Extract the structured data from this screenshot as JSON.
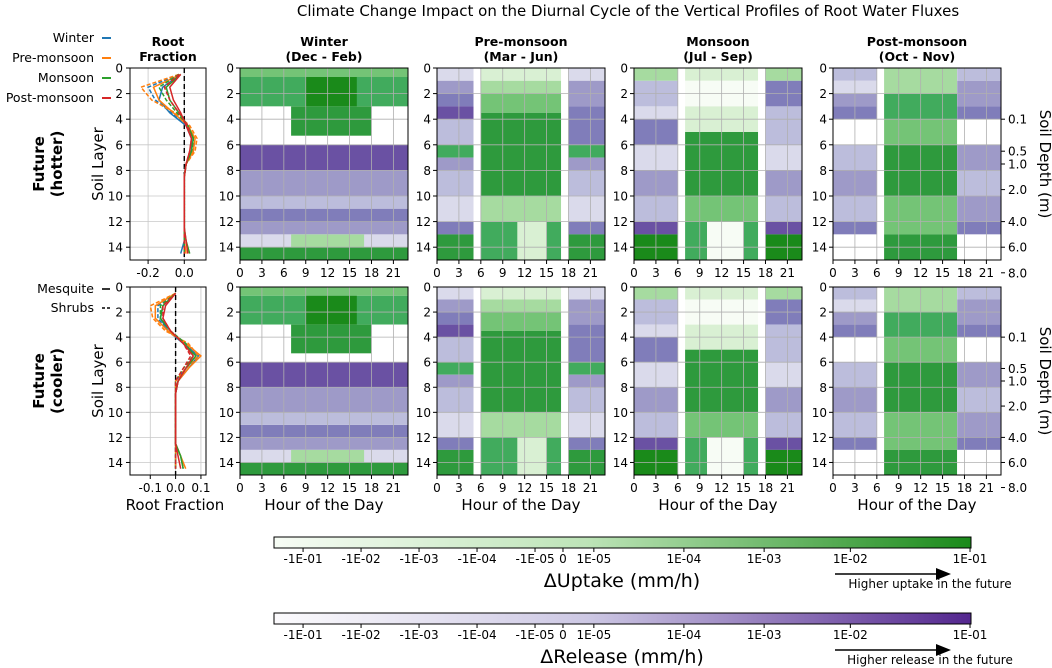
{
  "chart_data": {
    "type": "heatmap",
    "title": "Climate Change Impact on the Diurnal Cycle of the Vertical Profiles of Root Water Fluxes",
    "rows": [
      {
        "label_line1": "Future",
        "label_line2": "(hotter)"
      },
      {
        "label_line1": "Future",
        "label_line2": "(cooler)"
      }
    ],
    "root_panel": {
      "title_line1": "Root",
      "title_line2": "Fraction",
      "ylabel": "Soil Layer",
      "xlabel": "Root Fraction",
      "yticks": [
        "0",
        "2",
        "4",
        "6",
        "8",
        "10",
        "12",
        "14"
      ],
      "xticks_row1": [
        "-0.2",
        "0.0"
      ],
      "xticks_row2": [
        "-0.1",
        "0.0",
        "0.1"
      ],
      "layers": [
        0,
        1,
        2,
        3,
        4,
        5,
        6,
        7,
        8,
        9,
        10,
        11,
        12,
        13,
        14
      ],
      "row1_series": [
        {
          "season": "Winter",
          "vegetation": "Mesquite",
          "values": [
            -0.02,
            -0.12,
            -0.14,
            -0.08,
            0.01,
            0.04,
            0.04,
            0.01,
            0.0,
            0.0,
            0.0,
            0.0,
            0.0,
            0.0,
            -0.02
          ]
        },
        {
          "season": "Winter",
          "vegetation": "Shrubs",
          "values": [
            -0.03,
            -0.2,
            -0.16,
            -0.07,
            0.02,
            0.05,
            0.05,
            0.01,
            0.0,
            0.0,
            0.0,
            0.0,
            0.0,
            0.0,
            0.0
          ]
        },
        {
          "season": "Pre-monsoon",
          "vegetation": "Mesquite",
          "values": [
            -0.02,
            -0.17,
            -0.14,
            -0.06,
            0.02,
            0.06,
            0.05,
            0.01,
            0.0,
            0.0,
            0.0,
            0.0,
            0.0,
            0.0,
            0.01
          ]
        },
        {
          "season": "Pre-monsoon",
          "vegetation": "Shrubs",
          "values": [
            -0.03,
            -0.24,
            -0.18,
            -0.05,
            0.03,
            0.07,
            0.06,
            0.01,
            0.0,
            0.0,
            0.0,
            0.0,
            0.0,
            0.0,
            0.0
          ]
        },
        {
          "season": "Monsoon",
          "vegetation": "Mesquite",
          "values": [
            -0.02,
            -0.1,
            -0.08,
            -0.03,
            0.02,
            0.05,
            0.04,
            0.01,
            0.0,
            0.0,
            0.0,
            0.0,
            0.0,
            0.01,
            0.03
          ]
        },
        {
          "season": "Monsoon",
          "vegetation": "Shrubs",
          "values": [
            -0.03,
            -0.14,
            -0.1,
            -0.04,
            0.02,
            0.05,
            0.04,
            0.01,
            0.0,
            0.0,
            0.0,
            0.0,
            0.0,
            0.0,
            0.0
          ]
        },
        {
          "season": "Post-monsoon",
          "vegetation": "Mesquite",
          "values": [
            -0.02,
            -0.08,
            -0.06,
            -0.02,
            0.01,
            0.04,
            0.03,
            0.01,
            0.0,
            0.0,
            0.0,
            0.0,
            0.0,
            0.01,
            0.02
          ]
        },
        {
          "season": "Post-monsoon",
          "vegetation": "Shrubs",
          "values": [
            -0.03,
            -0.11,
            -0.08,
            -0.03,
            0.02,
            0.04,
            0.03,
            0.01,
            0.0,
            0.0,
            0.0,
            0.0,
            0.0,
            0.0,
            0.0
          ]
        }
      ],
      "row2_series": [
        {
          "season": "Winter",
          "vegetation": "Mesquite",
          "values": [
            0.0,
            -0.05,
            -0.06,
            -0.03,
            0.03,
            0.09,
            0.05,
            0.01,
            0.0,
            0.0,
            0.0,
            0.0,
            0.0,
            0.02,
            0.03
          ]
        },
        {
          "season": "Winter",
          "vegetation": "Shrubs",
          "values": [
            0.0,
            -0.07,
            -0.07,
            -0.03,
            0.04,
            0.08,
            0.04,
            0.0,
            0.0,
            0.0,
            0.0,
            0.0,
            0.0,
            0.0,
            0.0
          ]
        },
        {
          "season": "Pre-monsoon",
          "vegetation": "Mesquite",
          "values": [
            0.0,
            -0.08,
            -0.08,
            -0.03,
            0.04,
            0.1,
            0.05,
            0.01,
            0.0,
            0.0,
            0.0,
            0.0,
            0.0,
            0.02,
            0.04
          ]
        },
        {
          "season": "Pre-monsoon",
          "vegetation": "Shrubs",
          "values": [
            0.0,
            -0.1,
            -0.09,
            -0.04,
            0.05,
            0.09,
            0.04,
            0.0,
            0.0,
            0.0,
            0.0,
            0.0,
            0.0,
            0.0,
            0.0
          ]
        },
        {
          "season": "Monsoon",
          "vegetation": "Mesquite",
          "values": [
            0.0,
            -0.05,
            -0.06,
            -0.02,
            0.03,
            0.08,
            0.04,
            0.01,
            0.0,
            0.0,
            0.0,
            0.0,
            0.0,
            0.02,
            0.03
          ]
        },
        {
          "season": "Monsoon",
          "vegetation": "Shrubs",
          "values": [
            0.0,
            -0.06,
            -0.06,
            -0.02,
            0.04,
            0.07,
            0.03,
            0.0,
            0.0,
            0.0,
            0.0,
            0.0,
            0.0,
            0.0,
            0.0
          ]
        },
        {
          "season": "Post-monsoon",
          "vegetation": "Mesquite",
          "values": [
            0.0,
            -0.04,
            -0.05,
            -0.02,
            0.03,
            0.07,
            0.04,
            0.01,
            0.0,
            0.0,
            0.0,
            0.0,
            0.0,
            0.01,
            0.02
          ]
        },
        {
          "season": "Post-monsoon",
          "vegetation": "Shrubs",
          "values": [
            0.0,
            -0.05,
            -0.05,
            -0.02,
            0.03,
            0.06,
            0.03,
            0.0,
            0.0,
            0.0,
            0.0,
            0.0,
            0.0,
            0.0,
            0.0
          ]
        }
      ]
    },
    "season_legend": [
      {
        "label": "Winter",
        "color": "#1f77b4"
      },
      {
        "label": "Pre-monsoon",
        "color": "#ff7f0e"
      },
      {
        "label": "Monsoon",
        "color": "#2ca02c"
      },
      {
        "label": "Post-monsoon",
        "color": "#d62728"
      }
    ],
    "vegetation_legend": [
      {
        "label": "Mesquite",
        "style": "solid"
      },
      {
        "label": "Shrubs",
        "style": "dashed"
      }
    ],
    "seasons": [
      {
        "title": "Winter",
        "months": "(Dec - Feb)"
      },
      {
        "title": "Pre-monsoon",
        "months": "(Mar - Jun)"
      },
      {
        "title": "Monsoon",
        "months": "(Jul - Sep)"
      },
      {
        "title": "Post-monsoon",
        "months": "(Oct - Nov)"
      }
    ],
    "heatmap_axes": {
      "xlabel": "Hour of the Day",
      "ylabel_left": "Soil Layer",
      "ylabel_right": "Soil Depth (m)",
      "xticks": [
        "0",
        "3",
        "6",
        "9",
        "12",
        "15",
        "18",
        "21"
      ],
      "yticks": [
        "0",
        "2",
        "4",
        "6",
        "8",
        "10",
        "12",
        "14"
      ],
      "depth_ticks": [
        {
          "layer": 4,
          "label": "0.1"
        },
        {
          "layer": 6.5,
          "label": "0.5"
        },
        {
          "layer": 7.5,
          "label": "1.0"
        },
        {
          "layer": 9.5,
          "label": "2.0"
        },
        {
          "layer": 12,
          "label": "4.0"
        },
        {
          "layer": 14,
          "label": "6.0"
        },
        {
          "layer": 16,
          "label": "8.0"
        }
      ],
      "x_range": [
        0,
        23
      ],
      "y_range": [
        15,
        0
      ]
    },
    "colorbars": [
      {
        "label": "ΔUptake (mm/h)",
        "ticks": [
          "-1E-01",
          "-1E-02",
          "-1E-03",
          "-1E-04",
          "-1E-05",
          "0",
          "1E-05",
          "1E-04",
          "1E-03",
          "1E-02",
          "1E-01"
        ],
        "annotation": "Higher uptake in the future",
        "color_low": "#f7fcf5",
        "color_high": "#1a8a1a"
      },
      {
        "label": "ΔRelease  (mm/h)",
        "ticks": [
          "-1E-01",
          "-1E-02",
          "-1E-03",
          "-1E-04",
          "-1E-05",
          "0",
          "1E-05",
          "1E-04",
          "1E-03",
          "1E-02",
          "1E-01"
        ],
        "annotation": "Higher release in the future",
        "color_low": "#fcfbfd",
        "color_high": "#54278f"
      }
    ]
  }
}
